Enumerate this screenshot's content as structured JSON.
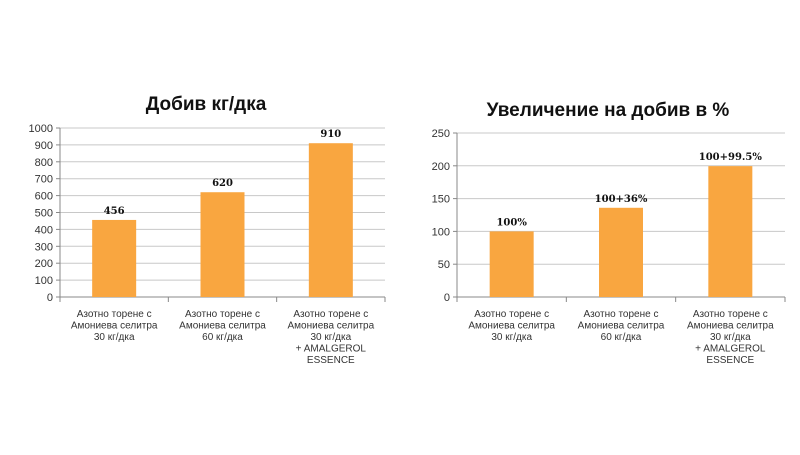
{
  "chart_data": [
    {
      "type": "bar",
      "title": "Добив кг/дка",
      "categories": [
        [
          "Азотно торене с",
          "Амониева селитра",
          "30 кг/дка"
        ],
        [
          "Азотно торене с",
          "Амониева селитра",
          "60 кг/дка"
        ],
        [
          "Азотно торене с",
          "Амониева селитра",
          "30 кг/дка",
          "+ AMALGEROL",
          "ESSENCE"
        ]
      ],
      "values": [
        456,
        620,
        910
      ],
      "data_labels": [
        "456",
        "620",
        "910"
      ],
      "yticks": [
        "0",
        "100",
        "200",
        "300",
        "400",
        "500",
        "600",
        "700",
        "800",
        "900",
        "1000"
      ],
      "ylim": [
        0,
        1000
      ],
      "grid": true,
      "bar_color": "#F9A640"
    },
    {
      "type": "bar",
      "title": "Увеличение на добив в %",
      "categories": [
        [
          "Азотно торене с",
          "Амониева селитра",
          "30 кг/дка"
        ],
        [
          "Азотно торене с",
          "Амониева селитра",
          "60 кг/дка"
        ],
        [
          "Азотно торене с",
          "Амониева селитра",
          "30 кг/дка",
          "+ AMALGEROL",
          "ESSENCE"
        ]
      ],
      "values": [
        100,
        136,
        199.5
      ],
      "data_labels": [
        "100%",
        "100+36%",
        "100+99.5%"
      ],
      "yticks": [
        "0",
        "50",
        "100",
        "150",
        "200",
        "250"
      ],
      "ylim": [
        0,
        250
      ],
      "grid": true,
      "bar_color": "#F9A640"
    }
  ]
}
